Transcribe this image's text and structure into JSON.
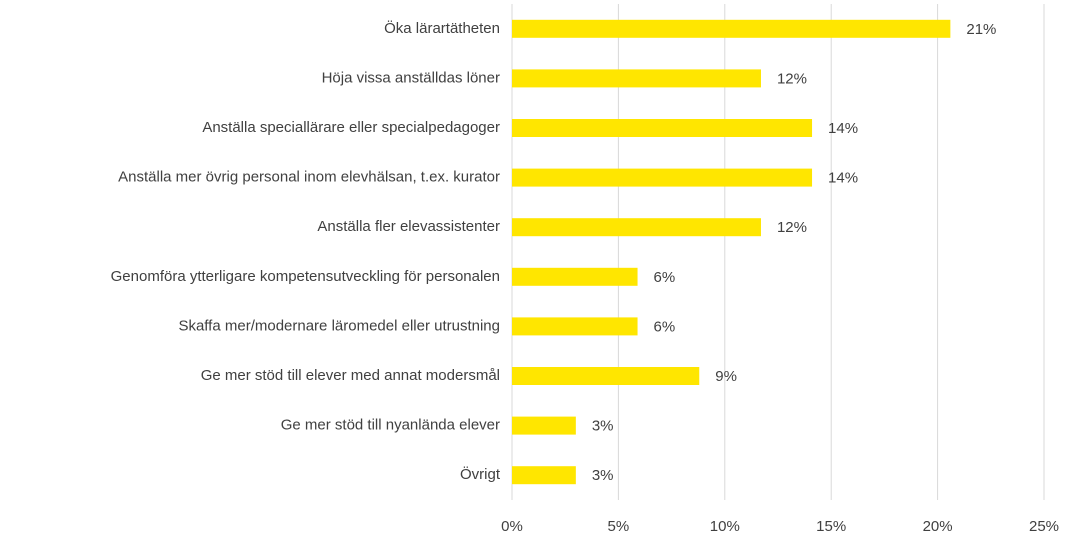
{
  "chart_data": {
    "type": "bar",
    "orientation": "horizontal",
    "categories": [
      "Öka lärartätheten",
      "Höja vissa anställdas löner",
      "Anställa speciallärare eller specialpedagoger",
      "Anställa mer övrig personal inom elevhälsan, t.ex. kurator",
      "Anställa fler elevassistenter",
      "Genomföra ytterligare kompetensutveckling för personalen",
      "Skaffa mer/modernare läromedel eller utrustning",
      "Ge mer stöd till elever med annat modersmål",
      "Ge mer stöd till nyanlända elever",
      "Övrigt"
    ],
    "values": [
      20.6,
      11.7,
      14.1,
      14.1,
      11.7,
      5.9,
      5.9,
      8.8,
      3.0,
      3.0
    ],
    "value_labels": [
      "21%",
      "12%",
      "14%",
      "14%",
      "12%",
      "6%",
      "6%",
      "9%",
      "3%",
      "3%"
    ],
    "color": "#FFE600",
    "xlim": [
      0,
      25
    ],
    "xticks": [
      {
        "value": 0,
        "label": "0%"
      },
      {
        "value": 5,
        "label": "5%"
      },
      {
        "value": 10,
        "label": "10%"
      },
      {
        "value": 15,
        "label": "15%"
      },
      {
        "value": 20,
        "label": "20%"
      },
      {
        "value": 25,
        "label": "25%"
      }
    ],
    "grid": true
  }
}
